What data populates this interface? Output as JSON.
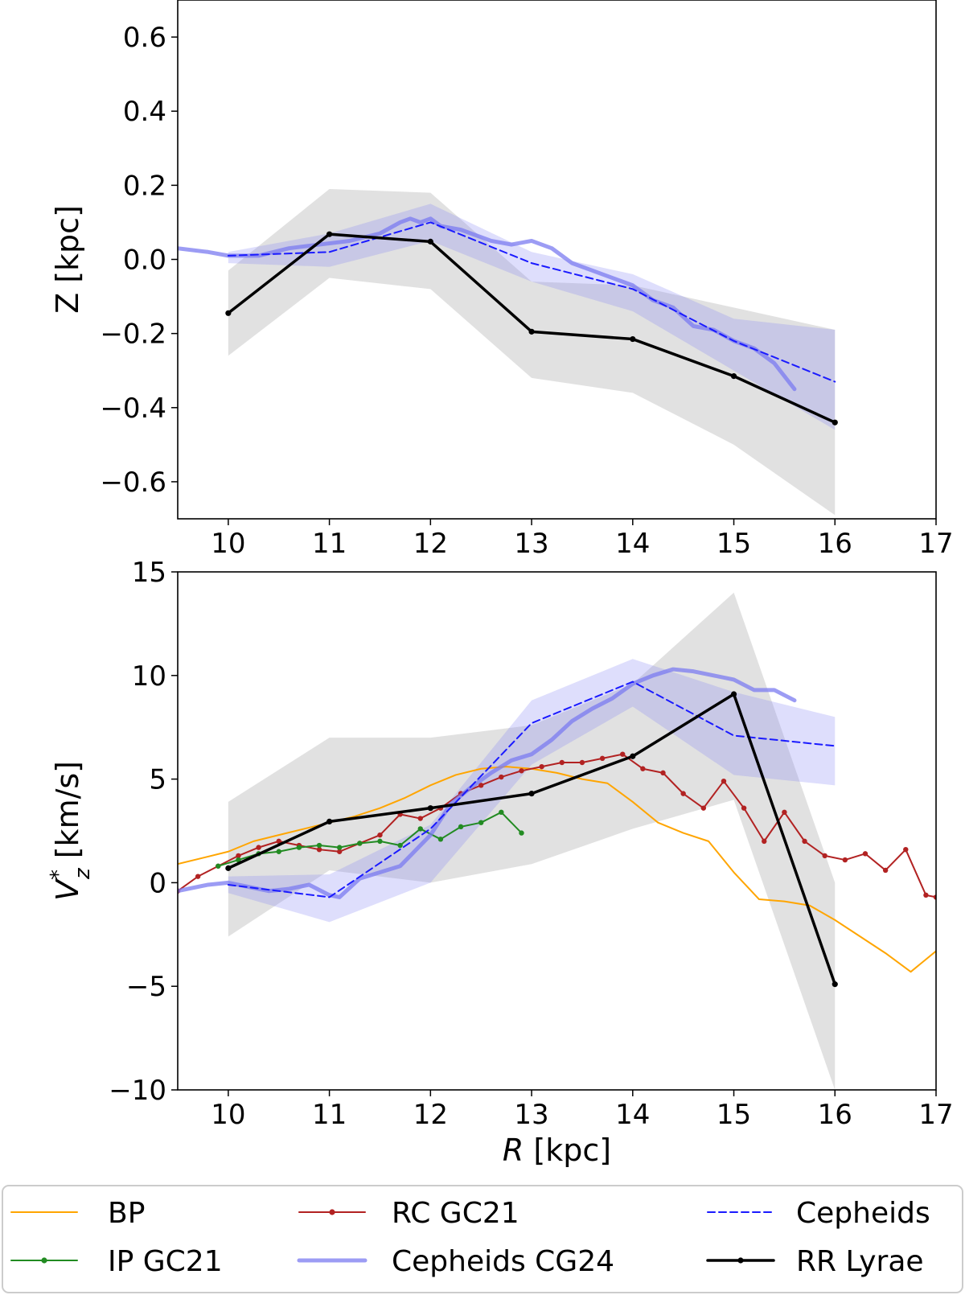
{
  "chart_data": [
    {
      "type": "line",
      "panel": "top",
      "ylabel": "Z [kpc]",
      "xlabel": "",
      "xlim": [
        9.5,
        17
      ],
      "ylim": [
        -0.7,
        0.7
      ],
      "xticks": [
        "10",
        "11",
        "12",
        "13",
        "14",
        "15",
        "16",
        "17"
      ],
      "yticks": [
        "0.6",
        "0.4",
        "0.2",
        "0.0",
        "−0.2",
        "−0.4",
        "−0.6"
      ],
      "ytick_values": [
        0.6,
        0.4,
        0.2,
        0.0,
        -0.2,
        -0.4,
        -0.6
      ],
      "bands": [
        {
          "name": "RR Lyrae band",
          "color": "#c8c8c8",
          "x": [
            10,
            11,
            12,
            13,
            14,
            15,
            16
          ],
          "upper": [
            -0.03,
            0.19,
            0.18,
            -0.06,
            -0.07,
            -0.13,
            -0.19
          ],
          "lower": [
            -0.26,
            -0.05,
            -0.08,
            -0.32,
            -0.36,
            -0.5,
            -0.69
          ]
        },
        {
          "name": "Cepheids band",
          "color": "#8a8af5",
          "x": [
            10,
            11,
            12,
            13,
            14,
            15,
            16
          ],
          "upper": [
            0.02,
            0.07,
            0.15,
            0.02,
            -0.04,
            -0.16,
            -0.19
          ],
          "lower": [
            -0.01,
            -0.02,
            0.05,
            -0.06,
            -0.14,
            -0.3,
            -0.46
          ]
        }
      ],
      "series": [
        {
          "name": "Cepheids CG24",
          "color": "#7b7bf0",
          "style": "thick",
          "x": [
            9.5,
            9.8,
            10.0,
            10.3,
            10.6,
            10.9,
            11.2,
            11.5,
            11.7,
            11.8,
            11.9,
            12.0,
            12.1,
            12.3,
            12.6,
            12.8,
            13.0,
            13.2,
            13.4,
            13.6,
            13.8,
            14.0,
            14.2,
            14.4,
            14.6,
            14.8,
            15.0,
            15.2,
            15.4,
            15.6
          ],
          "y": [
            0.03,
            0.02,
            0.01,
            0.01,
            0.03,
            0.04,
            0.05,
            0.07,
            0.1,
            0.11,
            0.1,
            0.11,
            0.09,
            0.08,
            0.05,
            0.04,
            0.05,
            0.03,
            -0.01,
            -0.03,
            -0.05,
            -0.07,
            -0.11,
            -0.13,
            -0.18,
            -0.19,
            -0.22,
            -0.24,
            -0.28,
            -0.35
          ]
        },
        {
          "name": "Cepheids",
          "color": "#1a1aff",
          "style": "dashed",
          "x": [
            10,
            11,
            12,
            13,
            14,
            15,
            16
          ],
          "y": [
            0.01,
            0.02,
            0.1,
            -0.01,
            -0.08,
            -0.22,
            -0.33
          ]
        },
        {
          "name": "RR Lyrae",
          "color": "#000000",
          "style": "thick-markers",
          "x": [
            10,
            11,
            12,
            13,
            14,
            15,
            16
          ],
          "y": [
            -0.145,
            0.068,
            0.048,
            -0.195,
            -0.215,
            -0.315,
            -0.44
          ]
        }
      ]
    },
    {
      "type": "line",
      "panel": "bottom",
      "ylabel": "V*z [km/s]",
      "xlabel": "R [kpc]",
      "xlim": [
        9.5,
        17
      ],
      "ylim": [
        -10,
        15
      ],
      "xticks": [
        "10",
        "11",
        "12",
        "13",
        "14",
        "15",
        "16",
        "17"
      ],
      "yticks": [
        "15",
        "10",
        "5",
        "0",
        "−5",
        "−10"
      ],
      "ytick_values": [
        15,
        10,
        5,
        0,
        -5,
        -10
      ],
      "bands": [
        {
          "name": "RR Lyrae band",
          "color": "#c8c8c8",
          "x": [
            10,
            11,
            12,
            13,
            14,
            15,
            16
          ],
          "upper": [
            3.9,
            7.0,
            7.0,
            7.6,
            9.6,
            14.0,
            0.0
          ],
          "lower": [
            -2.6,
            0.6,
            0.0,
            0.9,
            2.6,
            4.0,
            -10.0
          ]
        },
        {
          "name": "Cepheids band",
          "color": "#8a8af5",
          "x": [
            10,
            11,
            12,
            13,
            14,
            15,
            16
          ],
          "upper": [
            0.3,
            0.4,
            2.8,
            8.8,
            10.8,
            9.2,
            8.0
          ],
          "lower": [
            -0.5,
            -1.9,
            0.0,
            5.7,
            8.5,
            5.2,
            4.7
          ]
        }
      ],
      "series": [
        {
          "name": "BP",
          "color": "#ffa500",
          "style": "solid",
          "x": [
            9.5,
            10.0,
            10.25,
            10.5,
            10.75,
            11.0,
            11.25,
            11.5,
            11.75,
            12.0,
            12.25,
            12.5,
            12.75,
            13.0,
            13.25,
            13.5,
            13.75,
            14.0,
            14.25,
            14.5,
            14.75,
            15.0,
            15.25,
            15.5,
            15.75,
            16.0,
            16.25,
            16.5,
            16.75,
            17.0
          ],
          "y": [
            0.9,
            1.5,
            2.0,
            2.3,
            2.6,
            2.9,
            3.2,
            3.6,
            4.1,
            4.7,
            5.2,
            5.5,
            5.6,
            5.5,
            5.3,
            5.0,
            4.8,
            3.9,
            2.9,
            2.4,
            2.0,
            0.5,
            -0.8,
            -0.9,
            -1.1,
            -1.8,
            -2.6,
            -3.4,
            -4.3,
            -3.3
          ]
        },
        {
          "name": "RC GC21",
          "color": "#b22222",
          "style": "markers",
          "x": [
            9.5,
            9.7,
            9.9,
            10.1,
            10.3,
            10.5,
            10.7,
            10.9,
            11.1,
            11.3,
            11.5,
            11.7,
            11.9,
            12.1,
            12.3,
            12.5,
            12.7,
            12.9,
            13.1,
            13.3,
            13.5,
            13.7,
            13.9,
            14.1,
            14.3,
            14.5,
            14.7,
            14.9,
            15.1,
            15.3,
            15.5,
            15.7,
            15.9,
            16.1,
            16.3,
            16.5,
            16.7,
            16.9,
            17.0
          ],
          "y": [
            -0.4,
            0.3,
            0.8,
            1.3,
            1.7,
            2.0,
            1.8,
            1.6,
            1.5,
            1.9,
            2.3,
            3.3,
            3.1,
            3.6,
            4.3,
            4.7,
            5.1,
            5.4,
            5.6,
            5.8,
            5.8,
            6.0,
            6.2,
            5.5,
            5.3,
            4.3,
            3.6,
            4.9,
            3.6,
            2.0,
            3.4,
            2.0,
            1.3,
            1.1,
            1.4,
            0.6,
            1.6,
            -0.6,
            -0.7
          ]
        },
        {
          "name": "IP GC21",
          "color": "#228b22",
          "style": "markers",
          "x": [
            9.9,
            10.1,
            10.3,
            10.5,
            10.7,
            10.9,
            11.1,
            11.3,
            11.5,
            11.7,
            11.9,
            12.1,
            12.3,
            12.5,
            12.7,
            12.9
          ],
          "y": [
            0.8,
            1.1,
            1.4,
            1.5,
            1.7,
            1.8,
            1.7,
            1.9,
            2.0,
            1.8,
            2.6,
            2.1,
            2.7,
            2.9,
            3.4,
            2.4
          ]
        },
        {
          "name": "Cepheids CG24",
          "color": "#7b7bf0",
          "style": "thick",
          "x": [
            9.5,
            9.8,
            10.0,
            10.2,
            10.4,
            10.6,
            10.8,
            11.0,
            11.1,
            11.3,
            11.5,
            11.7,
            11.9,
            12.0,
            12.2,
            12.4,
            12.6,
            12.8,
            13.0,
            13.2,
            13.4,
            13.6,
            13.8,
            14.0,
            14.2,
            14.4,
            14.6,
            14.8,
            15.0,
            15.2,
            15.4,
            15.6
          ],
          "y": [
            -0.4,
            -0.1,
            0.0,
            -0.2,
            -0.4,
            -0.3,
            -0.1,
            -0.6,
            -0.7,
            0.2,
            0.5,
            0.8,
            1.8,
            2.3,
            3.8,
            4.6,
            5.3,
            5.9,
            6.2,
            6.9,
            7.8,
            8.4,
            8.9,
            9.6,
            10.0,
            10.3,
            10.2,
            10.0,
            9.8,
            9.3,
            9.3,
            8.8
          ]
        },
        {
          "name": "Cepheids",
          "color": "#1a1aff",
          "style": "dashed",
          "x": [
            10,
            11,
            12,
            13,
            14,
            15,
            16
          ],
          "y": [
            -0.1,
            -0.7,
            2.6,
            7.7,
            9.7,
            7.1,
            6.6
          ]
        },
        {
          "name": "RR Lyrae",
          "color": "#000000",
          "style": "thick-markers",
          "x": [
            10,
            11,
            12,
            13,
            14,
            15,
            16
          ],
          "y": [
            0.7,
            2.95,
            3.6,
            4.3,
            6.1,
            9.1,
            -4.9
          ]
        }
      ]
    }
  ],
  "legend": {
    "placement": "bottom",
    "entries": [
      {
        "label": "BP",
        "color": "#ffa500",
        "style": "solid"
      },
      {
        "label": "IP GC21",
        "color": "#228b22",
        "style": "markers"
      },
      {
        "label": "RC GC21",
        "color": "#b22222",
        "style": "markers"
      },
      {
        "label": "Cepheids CG24",
        "color": "#7b7bf0",
        "style": "thick"
      },
      {
        "label": "Cepheids",
        "color": "#1a1aff",
        "style": "dashed"
      },
      {
        "label": "RR Lyrae",
        "color": "#000000",
        "style": "thick-markers"
      }
    ]
  }
}
